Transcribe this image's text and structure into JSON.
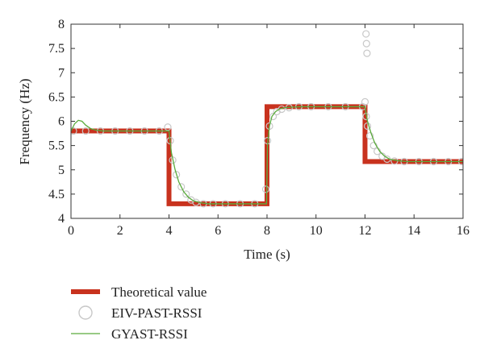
{
  "chart_data": {
    "type": "line",
    "xlabel": "Time (s)",
    "ylabel": "Frequency (Hz)",
    "xlim": [
      0,
      16
    ],
    "ylim": [
      4,
      8
    ],
    "x_ticks": [
      "0",
      "2",
      "4",
      "6",
      "8",
      "10",
      "12",
      "14",
      "16"
    ],
    "y_ticks": [
      "4",
      "4.5",
      "5",
      "5.5",
      "6",
      "6.5",
      "7",
      "7.5",
      "8"
    ],
    "grid": false,
    "legend_position": "below plot, left",
    "series": [
      {
        "name": "Theoretical value",
        "style": "step-thick",
        "color": "#c8321e",
        "x": [
          0,
          4,
          4,
          8,
          8,
          12,
          12,
          16
        ],
        "y": [
          5.8,
          5.8,
          4.3,
          4.3,
          6.3,
          6.3,
          5.17,
          5.17
        ]
      },
      {
        "name": "EIV-PAST-RSSI",
        "style": "markers-open-circle",
        "color": "#c8c8c8",
        "x": [
          0.1,
          0.6,
          1.2,
          1.8,
          2.4,
          3.0,
          3.6,
          3.95,
          4.05,
          4.15,
          4.3,
          4.5,
          4.7,
          4.9,
          5.1,
          5.4,
          5.8,
          6.3,
          6.9,
          7.5,
          7.95,
          8.02,
          8.1,
          8.25,
          8.4,
          8.6,
          8.9,
          9.3,
          9.8,
          10.5,
          11.2,
          11.9,
          12.0,
          12.05,
          12.1,
          12.2,
          12.35,
          12.5,
          12.7,
          12.9,
          13.2,
          13.6,
          14.2,
          14.8,
          15.4,
          15.95,
          12.04,
          12.06,
          12.08
        ],
        "y": [
          5.8,
          5.8,
          5.8,
          5.8,
          5.8,
          5.8,
          5.8,
          5.88,
          5.6,
          5.2,
          4.9,
          4.65,
          4.5,
          4.38,
          4.33,
          4.3,
          4.3,
          4.3,
          4.3,
          4.3,
          4.6,
          5.6,
          5.9,
          6.1,
          6.2,
          6.25,
          6.28,
          6.3,
          6.3,
          6.3,
          6.3,
          6.3,
          6.4,
          6.1,
          5.9,
          5.7,
          5.5,
          5.38,
          5.28,
          5.22,
          5.18,
          5.17,
          5.17,
          5.17,
          5.17,
          5.17,
          7.8,
          7.6,
          7.4
        ]
      },
      {
        "name": "GYAST-RSSI",
        "style": "line-thin",
        "color": "#5aab3c",
        "x": [
          0,
          0.15,
          0.3,
          0.45,
          0.6,
          0.8,
          1.0,
          1.3,
          1.6,
          2,
          3,
          4,
          4.1,
          4.25,
          4.4,
          4.6,
          4.8,
          5.0,
          5.3,
          5.6,
          6,
          7,
          7.98,
          8.02,
          8.1,
          8.2,
          8.35,
          8.5,
          8.7,
          9.0,
          9.4,
          10,
          11,
          12,
          12.1,
          12.25,
          12.4,
          12.6,
          12.8,
          13.0,
          13.3,
          13.7,
          14.2,
          15,
          16
        ],
        "y": [
          5.8,
          5.95,
          6.02,
          6.0,
          5.92,
          5.85,
          5.82,
          5.8,
          5.8,
          5.8,
          5.8,
          5.8,
          5.35,
          5.0,
          4.75,
          4.55,
          4.43,
          4.36,
          4.32,
          4.3,
          4.3,
          4.3,
          4.3,
          5.5,
          5.9,
          6.1,
          6.2,
          6.25,
          6.28,
          6.29,
          6.3,
          6.3,
          6.3,
          6.3,
          6.0,
          5.75,
          5.55,
          5.38,
          5.28,
          5.22,
          5.19,
          5.17,
          5.17,
          5.17,
          5.17
        ]
      }
    ]
  }
}
